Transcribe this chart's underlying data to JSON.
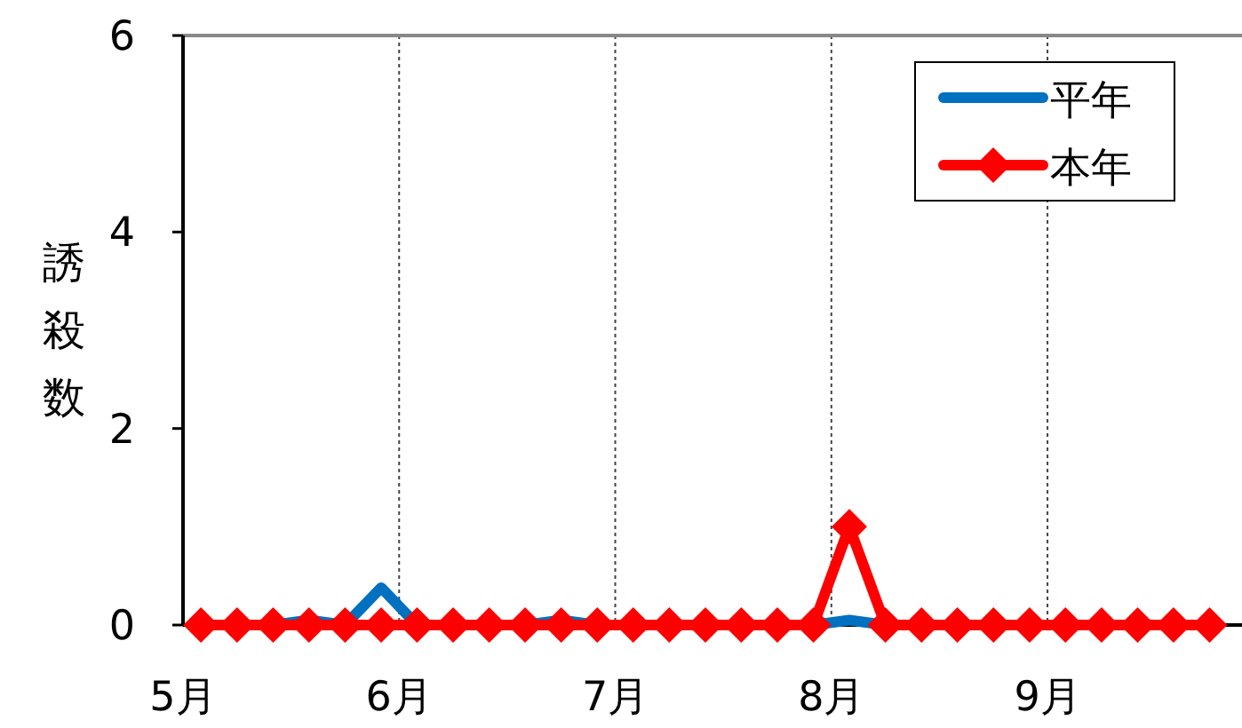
{
  "chart_data": {
    "type": "line",
    "ylabel": "誘殺数",
    "x": [
      5.083,
      5.25,
      5.417,
      5.583,
      5.75,
      5.917,
      6.083,
      6.25,
      6.417,
      6.583,
      6.75,
      6.917,
      7.083,
      7.25,
      7.417,
      7.583,
      7.75,
      7.917,
      8.083,
      8.25,
      8.417,
      8.583,
      8.75,
      8.917,
      9.083,
      9.25,
      9.417,
      9.583,
      9.75
    ],
    "xlim": [
      5,
      9.9
    ],
    "xticks": [
      {
        "value": 5,
        "label": "5月"
      },
      {
        "value": 6,
        "label": "6月"
      },
      {
        "value": 7,
        "label": "7月"
      },
      {
        "value": 8,
        "label": "8月"
      },
      {
        "value": 9,
        "label": "9月"
      }
    ],
    "ylim": [
      0,
      6
    ],
    "yticks": [
      0,
      2,
      4,
      6
    ],
    "grid": "x",
    "legend": "top right",
    "series": [
      {
        "name": "平年",
        "color": "#0070c0",
        "marker": "none",
        "values": [
          null,
          null,
          0,
          0.05,
          0,
          0.38,
          0,
          null,
          null,
          0,
          0.05,
          0,
          null,
          null,
          null,
          null,
          null,
          0,
          0.05,
          0,
          null,
          null,
          null,
          null,
          null,
          null,
          null,
          null,
          null
        ]
      },
      {
        "name": "本年",
        "color": "#ff0000",
        "marker": "diamond",
        "values": [
          0,
          0,
          0,
          0,
          0,
          0,
          0,
          0,
          0,
          0,
          0,
          0,
          0,
          0,
          0,
          0,
          0,
          0,
          1,
          0,
          0,
          0,
          0,
          0,
          0,
          0,
          0,
          0,
          0
        ]
      }
    ]
  }
}
